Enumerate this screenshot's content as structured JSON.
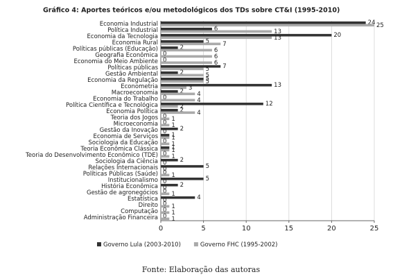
{
  "chart_data": {
    "type": "hbar",
    "title": "Gráfico 4: Aportes teóricos e/ou metodológicos dos TDs sobre CT&I (1995-2010)",
    "source": "Fonte: Elaboração das autoras",
    "categories": [
      "Economia Industrial",
      "Política Industrial",
      "Economia da Tecnologia",
      "Economia Rural",
      "Políticas públicas (Educação)",
      "Geografia Econômica",
      "Economia do Meio Ambiente",
      "Políticas públicas",
      "Gestão Ambiental",
      "Economia da Regulação",
      "Econometria",
      "Macroeconomia",
      "Economia do Trabalho",
      "Política Científica e Tecnológica",
      "Economia Política",
      "Teoria dos Jogos",
      "Microeconomia",
      "Gestão da Inovação",
      "Economia de Serviços",
      "Sociologia da Educação",
      "Teoria Econômica Clássica",
      "Teoria do Desenvolvimento Econômico (TDE)",
      "Sociologia da Ciência",
      "Relações Internacionais",
      "Políticas Públicas (Saúde)",
      "Institucionalismo",
      "História Econômica",
      "Gestão de agronegócios",
      "Estatística",
      "Direito",
      "Computação",
      "Administração Financeira"
    ],
    "series": [
      {
        "name": "Governo Lula (2003-2010)",
        "color": "#333333",
        "values": [
          24,
          6,
          20,
          5,
          2,
          0,
          0,
          7,
          2,
          5,
          13,
          2,
          0,
          12,
          2,
          0,
          0,
          2,
          1,
          0,
          1,
          0,
          2,
          5,
          0,
          5,
          2,
          0,
          4,
          0,
          0,
          0
        ]
      },
      {
        "name": "Governo FHC (1995-2002)",
        "color": "#aaaaaa",
        "values": [
          25,
          13,
          13,
          7,
          6,
          6,
          6,
          5,
          5,
          5,
          3,
          4,
          4,
          2,
          4,
          1,
          1,
          0,
          1,
          1,
          1,
          1,
          0,
          0,
          1,
          0,
          0,
          1,
          0,
          1,
          1,
          1
        ]
      }
    ],
    "xlim": [
      0,
      25
    ],
    "xticks": [
      0,
      5,
      10,
      15,
      20,
      25
    ],
    "grid": true,
    "legend": "bottom"
  }
}
